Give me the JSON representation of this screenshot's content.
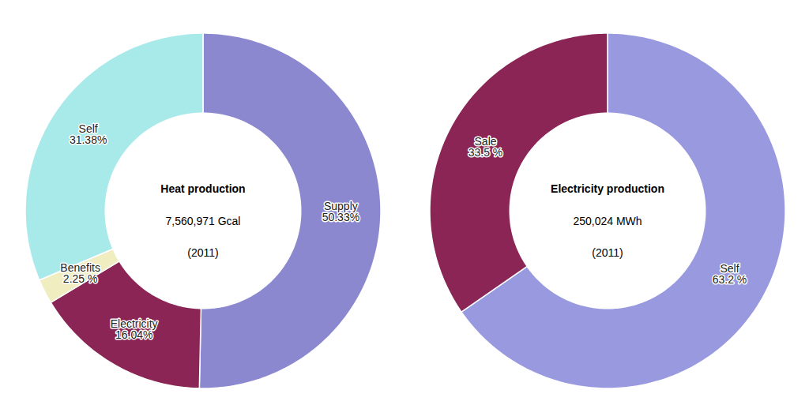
{
  "chart_data": [
    {
      "type": "pie",
      "title": "Heat production",
      "subtitle": "7,560,971 Gcal",
      "annotations": [
        "(2011)"
      ],
      "categories": [
        "Supply",
        "Electricity",
        "Benefits",
        "Self"
      ],
      "values": [
        50.33,
        16.04,
        2.25,
        31.38
      ],
      "value_labels": [
        "50.33%",
        "16.04%",
        "2.25 %",
        "31.38%"
      ],
      "colors": [
        "#8b88d0",
        "#8b2555",
        "#f0edc0",
        "#a8eaea"
      ],
      "data_labels": true
    },
    {
      "type": "pie",
      "title": "Electricity production",
      "subtitle": "250,024 MWh",
      "annotations": [
        "(2011)"
      ],
      "categories": [
        "Self",
        "Sale"
      ],
      "values": [
        63.2,
        33.5
      ],
      "value_labels": [
        "63.2 %",
        "33.5 %"
      ],
      "colors": [
        "#9999e0",
        "#8b2555"
      ],
      "data_labels": true
    }
  ]
}
